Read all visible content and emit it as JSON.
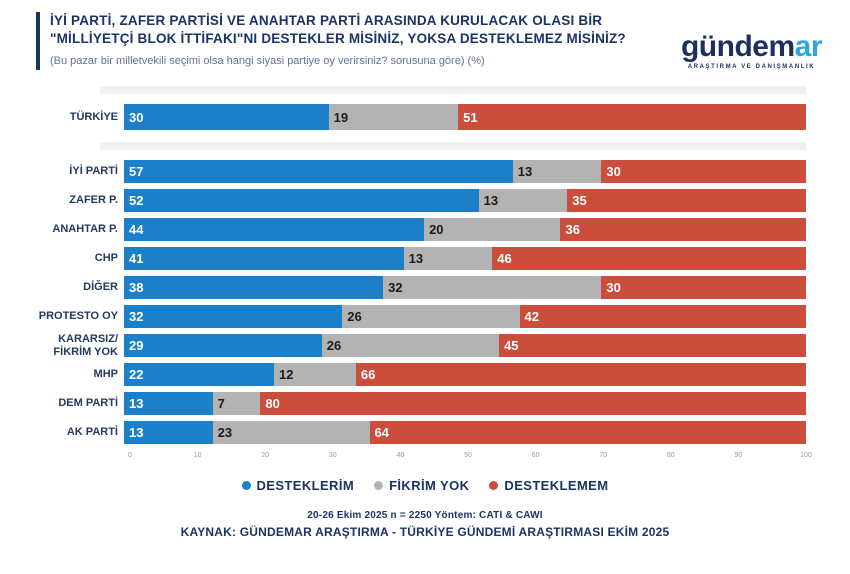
{
  "header": {
    "title": "İYİ PARTİ, ZAFER PARTİSİ VE ANAHTAR PARTİ ARASINDA KURULACAK OLASI BİR \"MİLLİYETÇİ BLOK İTTİFAKI\"NI DESTEKLER MİSİNİZ, YOKSA DESTEKLEMEZ MİSİNİZ?",
    "subtitle": "(Bu pazar bir milletvekili seçimi olsa hangi siyasi partiye oy verirsiniz? sorusuna göre) (%)"
  },
  "logo": {
    "main": "gündem",
    "accent": "ar",
    "tagline": "ARAŞTIRMA VE DANIŞMANLIK",
    "main_color": "#1c2f5e",
    "accent_color": "#29a8e0"
  },
  "chart_data": {
    "type": "bar",
    "orientation": "horizontal",
    "stacked": true,
    "unit": "%",
    "xlim": [
      0,
      100
    ],
    "x_ticks": [
      0,
      10,
      20,
      30,
      40,
      50,
      60,
      70,
      80,
      90,
      100
    ],
    "grid": false,
    "legend_position": "bottom",
    "categories": [
      "TÜRKİYE",
      "İYİ PARTİ",
      "ZAFER P.",
      "ANAHTAR P.",
      "CHP",
      "DİĞER",
      "PROTESTO OY",
      "KARARSIZ/\nFİKRİM YOK",
      "MHP",
      "DEM PARTİ",
      "AK PARTİ"
    ],
    "series": [
      {
        "name": "DESTEKLERİM",
        "slug": "desteklerim",
        "color": "#1b7fc9",
        "label_color": "#ffffff",
        "values": [
          30,
          57,
          52,
          44,
          41,
          38,
          32,
          29,
          22,
          13,
          13
        ]
      },
      {
        "name": "FİKRİM YOK",
        "slug": "fikrim-yok",
        "color": "#b3b3b3",
        "label_color": "#1a1a1a",
        "values": [
          19,
          13,
          13,
          20,
          13,
          32,
          26,
          26,
          12,
          7,
          23
        ]
      },
      {
        "name": "DESTEKLEMEM",
        "slug": "desteklemem",
        "color": "#cb4e3c",
        "label_color": "#ffffff",
        "values": [
          51,
          30,
          35,
          36,
          46,
          30,
          42,
          45,
          66,
          80,
          64
        ]
      }
    ]
  },
  "footer": {
    "line1": "20-26 Ekim 2025 n = 2250 Yöntem: CATI & CAWI",
    "line2": "KAYNAK: GÜNDEMAR ARAŞTIRMA - TÜRKİYE GÜNDEMİ ARAŞTIRMASI EKİM 2025"
  }
}
